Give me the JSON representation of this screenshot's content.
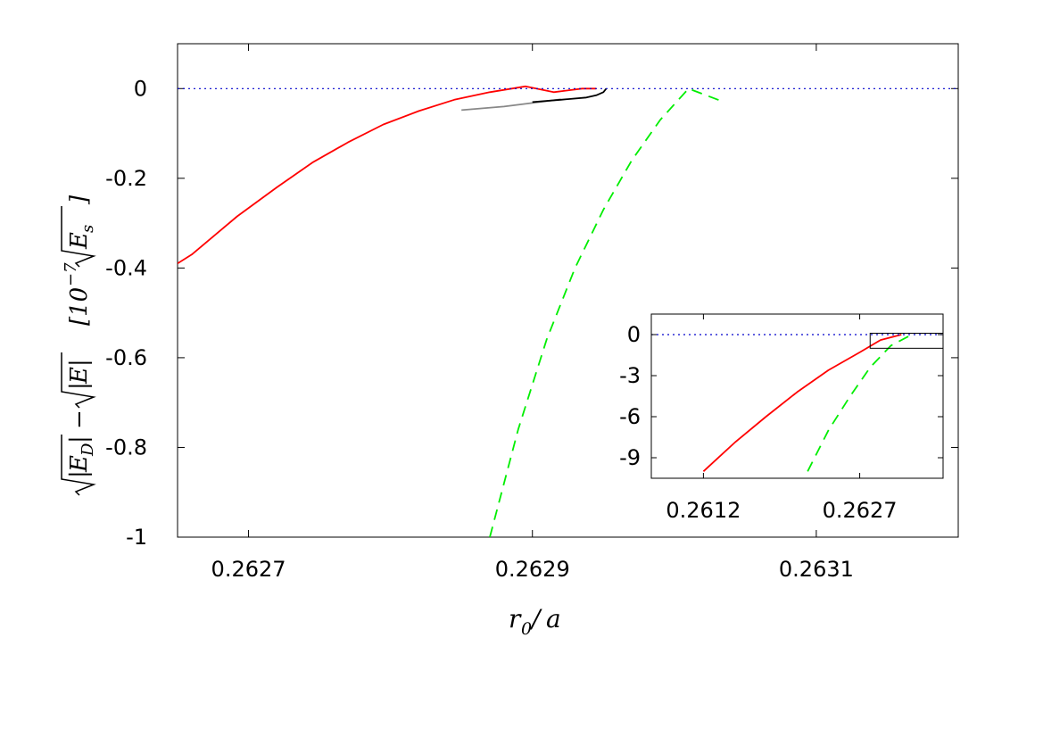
{
  "chart_data": [
    {
      "type": "line",
      "panel": "main",
      "xlabel": "r_0/a",
      "ylabel_parts": [
        "√|E_D| − √|E|",
        "[10⁻⁷ √E_s]"
      ],
      "xlim": [
        0.26265,
        0.2632
      ],
      "ylim": [
        -1,
        0.1
      ],
      "x_tick_labels": [
        "0.2627",
        "0.2629",
        "0.2631"
      ],
      "x_tick_values": [
        0.2627,
        0.2629,
        0.2631
      ],
      "y_tick_labels": [
        "0",
        "-0.2",
        "-0.4",
        "-0.6",
        "-0.8",
        "-1"
      ],
      "y_tick_values": [
        0,
        -0.2,
        -0.4,
        -0.6,
        -0.8,
        -1
      ],
      "grid": false,
      "series": [
        {
          "style": "solid",
          "color": "#ff0000",
          "x": [
            0.26265,
            0.26266,
            0.262692,
            0.26272,
            0.262745,
            0.26277,
            0.262795,
            0.26282,
            0.262845,
            0.26287,
            0.262895,
            0.262915,
            0.262935,
            0.262945
          ],
          "y": [
            -0.39,
            -0.37,
            -0.285,
            -0.22,
            -0.165,
            -0.12,
            -0.08,
            -0.05,
            -0.025,
            -0.008,
            0.005,
            -0.008,
            0.0,
            0.0
          ]
        },
        {
          "style": "solid",
          "color": "#888888",
          "x": [
            0.26285,
            0.26288,
            0.2629,
            0.26292
          ],
          "y": [
            -0.048,
            -0.04,
            -0.032,
            -0.024
          ]
        },
        {
          "style": "solid",
          "color": "#000000",
          "x": [
            0.2629,
            0.26292,
            0.262938,
            0.262945,
            0.26295,
            0.262952
          ],
          "y": [
            -0.03,
            -0.025,
            -0.02,
            -0.015,
            -0.008,
            0.0
          ]
        },
        {
          "style": "dashed",
          "color": "#00ee00",
          "x": [
            0.26287,
            0.26289,
            0.26291,
            0.26293,
            0.26295,
            0.26297,
            0.26299,
            0.26301,
            0.263035
          ],
          "y": [
            -1.0,
            -0.76,
            -0.56,
            -0.4,
            -0.27,
            -0.16,
            -0.07,
            0.0,
            -0.03
          ]
        },
        {
          "style": "dotted",
          "color": "#0000cc",
          "x": [
            0.26265,
            0.2632
          ],
          "y": [
            0,
            0
          ]
        }
      ]
    },
    {
      "type": "line",
      "panel": "inset",
      "xlim": [
        0.2607,
        0.2635
      ],
      "ylim": [
        -10.5,
        1.5
      ],
      "x_tick_labels": [
        "0.2612",
        "0.2627"
      ],
      "x_tick_values": [
        0.2612,
        0.2627
      ],
      "y_tick_labels": [
        "0",
        "-3",
        "-6",
        "-9"
      ],
      "y_tick_values": [
        0,
        -3,
        -6,
        -9
      ],
      "zoom_box": {
        "x": [
          0.2628,
          0.2635
        ],
        "y": [
          -1,
          0.1
        ]
      },
      "series": [
        {
          "style": "solid",
          "color": "#ff0000",
          "x": [
            0.2612,
            0.2615,
            0.2618,
            0.2621,
            0.2624,
            0.2627,
            0.2629,
            0.2631
          ],
          "y": [
            -10.0,
            -7.9,
            -6.0,
            -4.2,
            -2.6,
            -1.3,
            -0.4,
            0.0
          ]
        },
        {
          "style": "dashed",
          "color": "#00ee00",
          "x": [
            0.2622,
            0.2624,
            0.2626,
            0.2628,
            0.263,
            0.2632
          ],
          "y": [
            -10.0,
            -7.0,
            -4.6,
            -2.4,
            -0.8,
            0.0
          ]
        },
        {
          "style": "dotted",
          "color": "#0000cc",
          "x": [
            0.2607,
            0.2635
          ],
          "y": [
            0,
            0
          ]
        }
      ]
    }
  ]
}
